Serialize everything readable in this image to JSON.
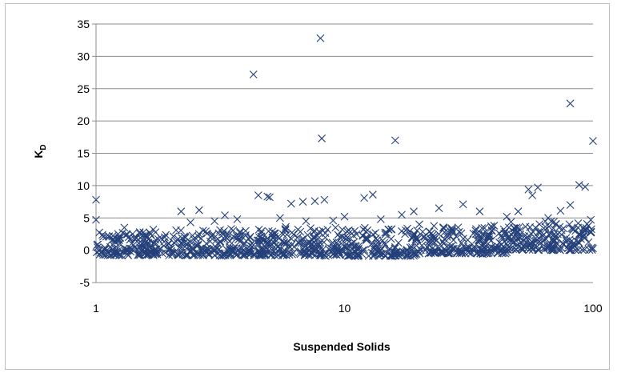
{
  "chart_data": {
    "type": "scatter",
    "xlabel": "Suspended Solids",
    "ylabel": "K",
    "ylabel_subscript": "D",
    "x_scale": "log",
    "xlim": [
      1,
      100
    ],
    "ylim": [
      -5,
      35
    ],
    "x_ticks": [
      "1",
      "10",
      "100"
    ],
    "y_ticks": [
      "-5",
      "0",
      "5",
      "10",
      "15",
      "20",
      "25",
      "30",
      "35"
    ],
    "grid": "horizontal",
    "legend": "none",
    "marker": "x",
    "marker_color": "#24407a",
    "series": [
      {
        "points": [
          [
            8.0,
            32.8
          ],
          [
            4.3,
            27.2
          ],
          [
            81,
            22.7
          ],
          [
            8.1,
            17.3
          ],
          [
            16,
            17.0
          ],
          [
            100,
            16.9
          ],
          [
            1.0,
            7.8
          ],
          [
            1.0,
            4.7
          ],
          [
            2.2,
            6.0
          ],
          [
            2.6,
            6.2
          ],
          [
            3.3,
            5.4
          ],
          [
            4.5,
            8.5
          ],
          [
            4.9,
            8.3
          ],
          [
            5.0,
            8.2
          ],
          [
            6.1,
            7.2
          ],
          [
            6.8,
            7.5
          ],
          [
            7.6,
            7.6
          ],
          [
            8.3,
            7.8
          ],
          [
            12,
            8.1
          ],
          [
            13,
            8.6
          ],
          [
            24,
            6.5
          ],
          [
            30,
            7.1
          ],
          [
            35,
            6.0
          ],
          [
            55,
            9.4
          ],
          [
            60,
            9.7
          ],
          [
            57,
            8.5
          ],
          [
            88,
            10.1
          ],
          [
            93,
            9.8
          ],
          [
            81,
            7.0
          ],
          [
            74,
            6.1
          ],
          [
            66,
            5.0
          ],
          [
            98,
            4.7
          ],
          [
            100,
            0.3
          ],
          [
            96,
            3.8
          ],
          [
            45,
            5.2
          ],
          [
            50,
            6.0
          ],
          [
            40,
            3.8
          ],
          [
            20,
            4.0
          ],
          [
            19,
            6.0
          ],
          [
            17,
            5.5
          ],
          [
            14,
            4.8
          ],
          [
            10,
            5.2
          ],
          [
            9,
            4.6
          ],
          [
            7,
            4.5
          ],
          [
            5.5,
            5.0
          ],
          [
            3.7,
            4.8
          ],
          [
            3.0,
            4.5
          ],
          [
            2.4,
            4.3
          ],
          [
            1.7,
            3.2
          ],
          [
            1.3,
            3.5
          ],
          [
            1.5,
            2.8
          ],
          [
            2.1,
            3.1
          ],
          [
            2.8,
            2.6
          ],
          [
            3.5,
            3.3
          ],
          [
            4.0,
            3.0
          ],
          [
            5.8,
            3.6
          ],
          [
            6.5,
            3.2
          ],
          [
            7.3,
            3.4
          ],
          [
            9.2,
            3.5
          ],
          [
            11,
            3.0
          ],
          [
            15,
            3.2
          ],
          [
            22,
            2.9
          ],
          [
            27,
            3.4
          ],
          [
            33,
            2.6
          ],
          [
            38,
            2.2
          ],
          [
            47,
            2.4
          ],
          [
            63,
            1.5
          ],
          [
            70,
            2.5
          ],
          [
            78,
            1.9
          ],
          [
            85,
            3.0
          ],
          [
            42,
            1.2
          ],
          [
            36,
            -0.6
          ],
          [
            26,
            -0.4
          ],
          [
            18,
            -0.8
          ],
          [
            13,
            -0.9
          ],
          [
            8.4,
            -0.9
          ],
          [
            6.0,
            -0.7
          ],
          [
            4.6,
            -0.8
          ],
          [
            3.2,
            -0.9
          ],
          [
            2.3,
            -0.8
          ],
          [
            1.6,
            -0.7
          ],
          [
            1.1,
            -0.6
          ]
        ],
        "dense_bands": [
          {
            "x_range": [
              1,
              2
            ],
            "y_min": -0.8,
            "y_max": 2.8
          },
          {
            "x_range": [
              2,
              5
            ],
            "y_min": -0.8,
            "y_max": 3.2
          },
          {
            "x_range": [
              5,
              10
            ],
            "y_min": -0.8,
            "y_max": 3.5
          },
          {
            "x_range": [
              10,
              20
            ],
            "y_min": -0.9,
            "y_max": 3.5
          },
          {
            "x_range": [
              20,
              45
            ],
            "y_min": -0.5,
            "y_max": 3.8
          },
          {
            "x_range": [
              45,
              100
            ],
            "y_min": 0.0,
            "y_max": 4.5
          }
        ]
      }
    ]
  }
}
